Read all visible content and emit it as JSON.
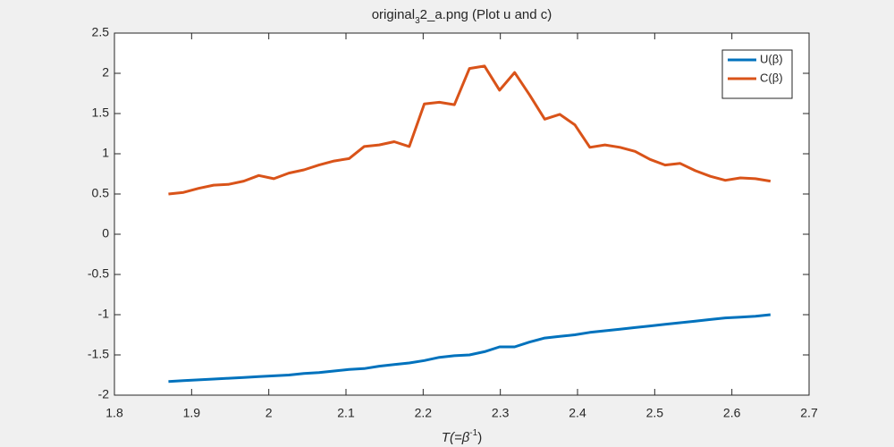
{
  "chart_data": {
    "type": "line",
    "title": [
      "original",
      "3",
      "2_a.png (Plot u and c)"
    ],
    "xlabel": [
      "T(=β",
      "-1",
      ")"
    ],
    "x": [
      1.87,
      1.8895,
      1.909,
      1.9285,
      1.948,
      1.9675,
      1.987,
      2.0065,
      2.026,
      2.0455,
      2.065,
      2.0845,
      2.104,
      2.1235,
      2.143,
      2.1625,
      2.182,
      2.2015,
      2.221,
      2.2405,
      2.26,
      2.2795,
      2.299,
      2.3185,
      2.338,
      2.3575,
      2.377,
      2.3965,
      2.416,
      2.4355,
      2.455,
      2.4745,
      2.494,
      2.5135,
      2.533,
      2.5525,
      2.572,
      2.5915,
      2.611,
      2.6305,
      2.65
    ],
    "series": [
      {
        "name": "U(β)",
        "color": "#0072bd",
        "values": [
          -1.83,
          -1.82,
          -1.81,
          -1.8,
          -1.79,
          -1.78,
          -1.77,
          -1.76,
          -1.75,
          -1.73,
          -1.72,
          -1.7,
          -1.68,
          -1.67,
          -1.64,
          -1.62,
          -1.6,
          -1.57,
          -1.53,
          -1.51,
          -1.5,
          -1.46,
          -1.4,
          -1.4,
          -1.34,
          -1.29,
          -1.27,
          -1.25,
          -1.22,
          -1.2,
          -1.18,
          -1.16,
          -1.14,
          -1.12,
          -1.1,
          -1.08,
          -1.06,
          -1.04,
          -1.03,
          -1.02,
          -1.0
        ]
      },
      {
        "name": "C(β)",
        "color": "#d95319",
        "values": [
          0.5,
          0.52,
          0.57,
          0.61,
          0.62,
          0.66,
          0.73,
          0.69,
          0.76,
          0.8,
          0.86,
          0.91,
          0.94,
          1.09,
          1.11,
          1.15,
          1.09,
          1.62,
          1.64,
          1.61,
          2.06,
          2.09,
          1.79,
          2.01,
          1.73,
          1.43,
          1.49,
          1.36,
          1.08,
          1.11,
          1.08,
          1.03,
          0.93,
          0.86,
          0.88,
          0.79,
          0.72,
          0.67,
          0.7,
          0.69,
          0.66
        ]
      }
    ],
    "xlim": [
      1.8,
      2.7
    ],
    "xticks": [
      1.8,
      1.9,
      2,
      2.1,
      2.2,
      2.3,
      2.4,
      2.5,
      2.6,
      2.7
    ],
    "ylim": [
      -2,
      2.5
    ],
    "yticks": [
      -2,
      -1.5,
      -1,
      -0.5,
      0,
      0.5,
      1,
      1.5,
      2,
      2.5
    ],
    "grid": false,
    "legend": "northeast"
  }
}
